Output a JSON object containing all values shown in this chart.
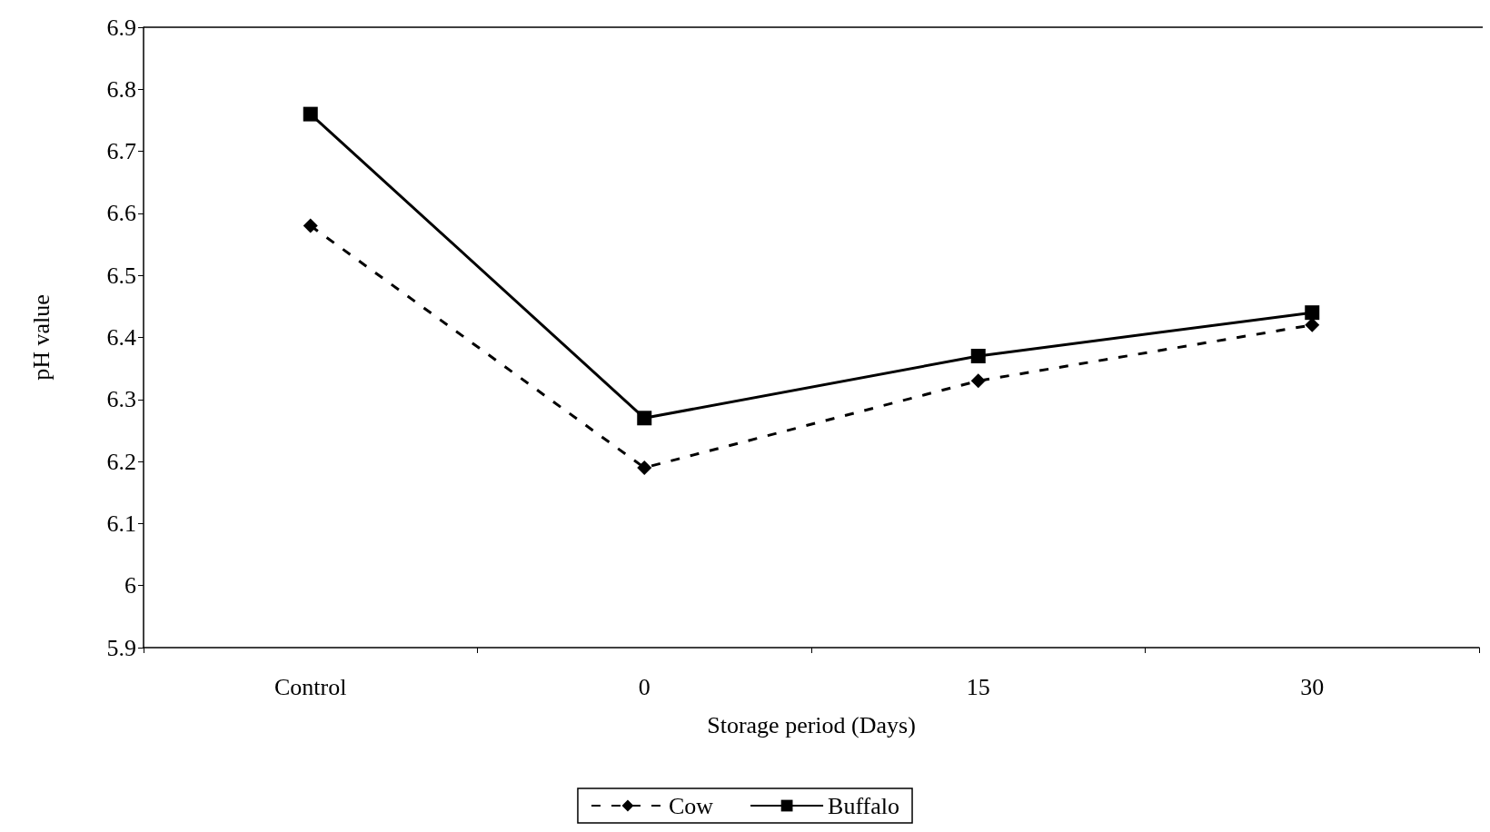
{
  "chart_data": {
    "type": "line",
    "xlabel": "Storage period (Days)",
    "ylabel": "pH value",
    "categories": [
      "Control",
      "0",
      "15",
      "30"
    ],
    "series": [
      {
        "name": "Cow",
        "color": "#000000",
        "marker": "diamond",
        "line_style": "dashed",
        "values": [
          6.58,
          6.19,
          6.33,
          6.42
        ]
      },
      {
        "name": "Buffalo",
        "color": "#000000",
        "marker": "square",
        "line_style": "solid",
        "values": [
          6.76,
          6.27,
          6.37,
          6.44
        ]
      }
    ],
    "ylim": [
      5.9,
      6.9
    ],
    "yticks": [
      5.9,
      6,
      6.1,
      6.2,
      6.3,
      6.4,
      6.5,
      6.6,
      6.7,
      6.8,
      6.9
    ],
    "grid": false,
    "legend": "bottom"
  }
}
